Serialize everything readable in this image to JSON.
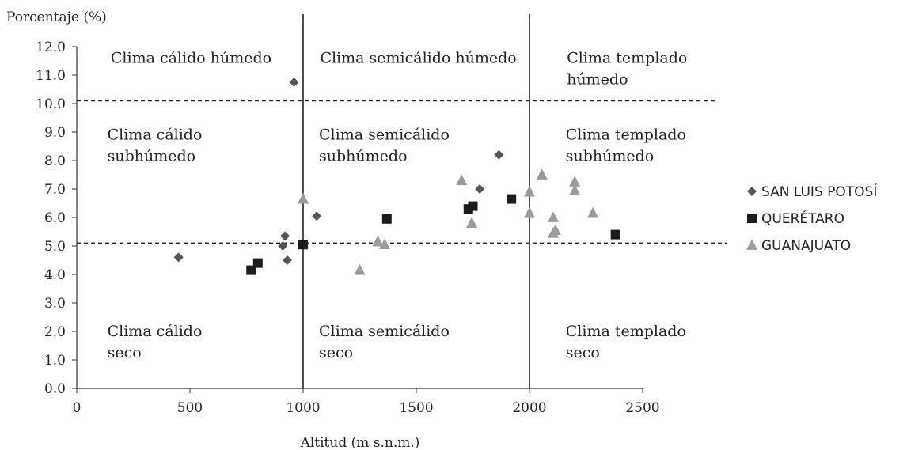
{
  "chart_data": {
    "type": "scatter",
    "ylabel": "Porcentaje (%)",
    "xlabel": "Altitud (m s.n.m.)",
    "xlim": [
      0,
      2500
    ],
    "ylim": [
      0,
      12
    ],
    "xticks": [
      0,
      500,
      1000,
      1500,
      2000,
      2500
    ],
    "yticks": [
      "0.0",
      "1.0",
      "2.0",
      "3.0",
      "4.0",
      "5.0",
      "6.0",
      "7.0",
      "8.0",
      "9.0",
      "10.0",
      "11.0",
      "12.0"
    ],
    "grid": false,
    "legend_position": "right",
    "dividers": {
      "vertical_x": [
        1000,
        2000
      ],
      "horizontal_y": [
        10.1,
        5.1
      ]
    },
    "zones": [
      {
        "lines": [
          "Clima cálido húmedo"
        ],
        "x": 150,
        "y": 11.6
      },
      {
        "lines": [
          "Clima semicálido húmedo"
        ],
        "x": 1075,
        "y": 11.6
      },
      {
        "lines": [
          "Clima templado",
          "húmedo"
        ],
        "x": 2165,
        "y": 11.6
      },
      {
        "lines": [
          "Clima cálido",
          "subhúmedo"
        ],
        "x": 135,
        "y": 8.9
      },
      {
        "lines": [
          "Clima semicálido",
          "subhúmedo"
        ],
        "x": 1070,
        "y": 8.9
      },
      {
        "lines": [
          "Clima templado",
          "subhúmedo"
        ],
        "x": 2160,
        "y": 8.9
      },
      {
        "lines": [
          "Clima cálido",
          "seco"
        ],
        "x": 135,
        "y": 2.0
      },
      {
        "lines": [
          "Clima semicálido",
          "seco"
        ],
        "x": 1070,
        "y": 2.0
      },
      {
        "lines": [
          "Clima templado",
          "seco"
        ],
        "x": 2160,
        "y": 2.0
      }
    ],
    "series": [
      {
        "name": "SAN LUIS POTOSÍ",
        "marker": "diamond",
        "color": "#555555",
        "points": [
          [
            450,
            4.6
          ],
          [
            960,
            10.75
          ],
          [
            910,
            5.0
          ],
          [
            920,
            5.35
          ],
          [
            930,
            4.5
          ],
          [
            1060,
            6.05
          ],
          [
            1780,
            7.0
          ],
          [
            1865,
            8.2
          ]
        ]
      },
      {
        "name": "QUERÉTARO",
        "marker": "square",
        "color": "#1c1c1c",
        "points": [
          [
            770,
            4.15
          ],
          [
            800,
            4.4
          ],
          [
            1000,
            5.05
          ],
          [
            1370,
            5.95
          ],
          [
            1730,
            6.3
          ],
          [
            1750,
            6.4
          ],
          [
            1920,
            6.65
          ],
          [
            2380,
            5.4
          ]
        ]
      },
      {
        "name": "GUANAJUATO",
        "marker": "triangle",
        "color": "#9a9a9a",
        "points": [
          [
            1000,
            6.65
          ],
          [
            1250,
            4.15
          ],
          [
            1330,
            5.15
          ],
          [
            1360,
            5.05
          ],
          [
            1700,
            7.3
          ],
          [
            1745,
            5.8
          ],
          [
            2000,
            6.9
          ],
          [
            2000,
            6.15
          ],
          [
            2055,
            7.5
          ],
          [
            2105,
            6.0
          ],
          [
            2105,
            5.45
          ],
          [
            2115,
            5.55
          ],
          [
            2200,
            7.25
          ],
          [
            2200,
            6.95
          ],
          [
            2280,
            6.15
          ]
        ]
      }
    ]
  }
}
